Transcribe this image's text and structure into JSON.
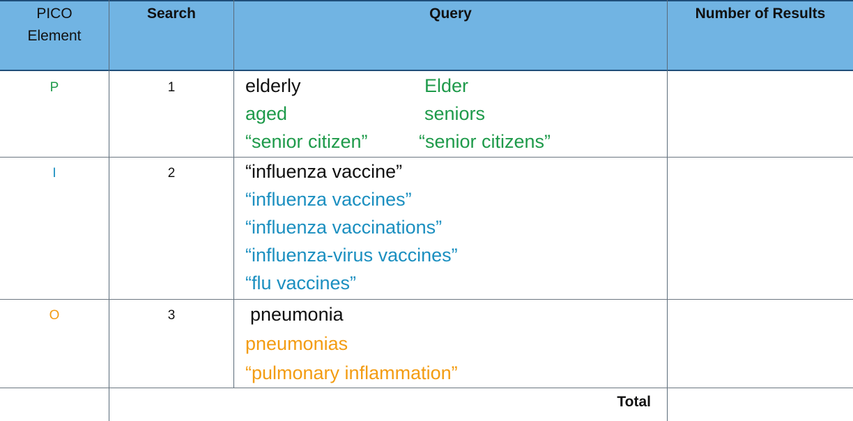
{
  "headers": {
    "pico_line1": "PICO",
    "pico_line2": "Element",
    "search": "Search",
    "query": "Query",
    "results": "Number of Results"
  },
  "rows": [
    {
      "pico": "P",
      "search": "1",
      "terms": [
        "elderly",
        "Elder",
        "aged",
        "seniors",
        "“senior citizen”",
        "“senior citizens”"
      ]
    },
    {
      "pico": "I",
      "search": "2",
      "terms": [
        "“influenza vaccine”",
        "“influenza vaccines”",
        "“influenza vaccinations”",
        "“influenza-virus vaccines”",
        "“flu vaccines”"
      ]
    },
    {
      "pico": "O",
      "search": "3",
      "terms": [
        "pneumonia",
        "pneumonias",
        "“pulmonary inflammation”"
      ]
    }
  ],
  "footer": {
    "total_label": "Total"
  },
  "colors": {
    "header_bg": "#71b4e3",
    "p_color": "#1e9a4a",
    "i_color": "#1b8fc0",
    "o_color": "#f39c12"
  }
}
